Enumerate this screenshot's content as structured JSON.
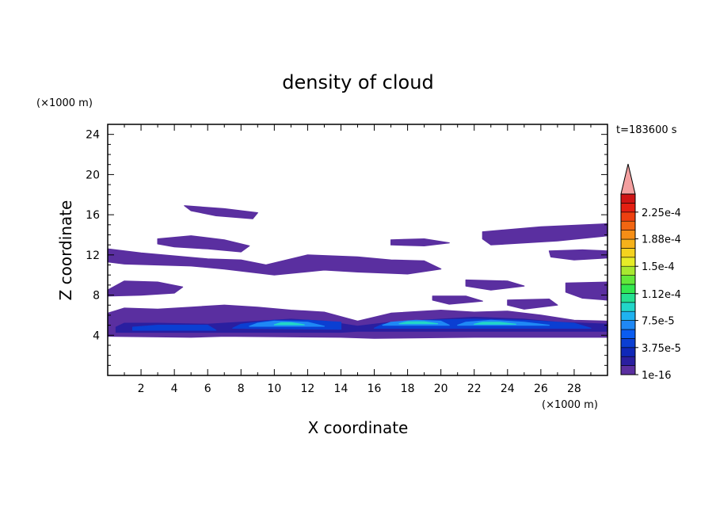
{
  "chart_data": {
    "type": "heatmap",
    "title": "density of cloud",
    "xlabel": "X coordinate",
    "ylabel": "Z coordinate",
    "x_unit": "(×1000 m)",
    "y_unit": "(×1000 m)",
    "time_label": "t=183600 s",
    "xlim": [
      0,
      30
    ],
    "ylim": [
      0,
      25
    ],
    "x_ticks": [
      2,
      4,
      6,
      8,
      10,
      12,
      14,
      16,
      18,
      20,
      22,
      24,
      26,
      28
    ],
    "y_ticks": [
      4,
      8,
      12,
      16,
      20,
      24
    ],
    "colorbar": {
      "min": 1e-16,
      "max": 0.00025,
      "tick_labels": [
        "2.25e-4",
        "1.88e-4",
        "1.5e-4",
        "1.12e-4",
        "7.5e-5",
        "3.75e-5",
        "1e-16"
      ],
      "tick_values": [
        0.000225,
        0.000188,
        0.00015,
        0.000112,
        7.5e-05,
        3.75e-05,
        1e-16
      ],
      "levels": [
        {
          "value": 1e-16,
          "color": "#5a2fa0"
        },
        {
          "value": 1.25e-05,
          "color": "#2a1fa0"
        },
        {
          "value": 2.5e-05,
          "color": "#1028b8"
        },
        {
          "value": 3.75e-05,
          "color": "#0b3fd2"
        },
        {
          "value": 5e-05,
          "color": "#0a5cf0"
        },
        {
          "value": 6.25e-05,
          "color": "#1f88f5"
        },
        {
          "value": 7.5e-05,
          "color": "#1fb2f0"
        },
        {
          "value": 8.75e-05,
          "color": "#22d6c8"
        },
        {
          "value": 0.0001,
          "color": "#25e090"
        },
        {
          "value": 0.0001125,
          "color": "#33e84f"
        },
        {
          "value": 0.000125,
          "color": "#63e83a"
        },
        {
          "value": 0.0001375,
          "color": "#a8e830"
        },
        {
          "value": 0.00015,
          "color": "#e6ec28"
        },
        {
          "value": 0.0001625,
          "color": "#f5d21f"
        },
        {
          "value": 0.000175,
          "color": "#f6b21a"
        },
        {
          "value": 0.0001875,
          "color": "#f58e16"
        },
        {
          "value": 0.0002,
          "color": "#f26612"
        },
        {
          "value": 0.0002125,
          "color": "#ee4010"
        },
        {
          "value": 0.000225,
          "color": "#e41f12"
        },
        {
          "value": 0.0002375,
          "color": "#cf1515"
        }
      ],
      "overflow_color": "#f4a0a0"
    },
    "regions": [
      {
        "level": 0,
        "points": [
          [
            0,
            3.9
          ],
          [
            5,
            3.8
          ],
          [
            7,
            3.9
          ],
          [
            14,
            3.8
          ],
          [
            16,
            3.7
          ],
          [
            22,
            3.8
          ],
          [
            30,
            3.8
          ],
          [
            30,
            5.4
          ],
          [
            28,
            5.5
          ],
          [
            26,
            6.0
          ],
          [
            24,
            6.4
          ],
          [
            22,
            6.3
          ],
          [
            20,
            6.5
          ],
          [
            17,
            6.2
          ],
          [
            15,
            5.4
          ],
          [
            13,
            6.3
          ],
          [
            11,
            6.5
          ],
          [
            9,
            6.8
          ],
          [
            7,
            7.0
          ],
          [
            5,
            6.8
          ],
          [
            3,
            6.6
          ],
          [
            1,
            6.7
          ],
          [
            0,
            6.2
          ]
        ]
      },
      {
        "level": 0,
        "points": [
          [
            0,
            8.5
          ],
          [
            1,
            9.4
          ],
          [
            3,
            9.3
          ],
          [
            4.5,
            8.8
          ],
          [
            4,
            8.2
          ],
          [
            2,
            8.0
          ],
          [
            0,
            7.9
          ]
        ]
      },
      {
        "level": 0,
        "points": [
          [
            0,
            12.6
          ],
          [
            2,
            12.2
          ],
          [
            4,
            11.9
          ],
          [
            6,
            11.6
          ],
          [
            8,
            11.5
          ],
          [
            9.5,
            11.0
          ],
          [
            12,
            12.0
          ],
          [
            15,
            11.8
          ],
          [
            17,
            11.5
          ],
          [
            19,
            11.4
          ],
          [
            20,
            10.6
          ],
          [
            18,
            10.1
          ],
          [
            15,
            10.3
          ],
          [
            13,
            10.5
          ],
          [
            10,
            10.0
          ],
          [
            7,
            10.6
          ],
          [
            5,
            10.9
          ],
          [
            3,
            11.0
          ],
          [
            1,
            11.1
          ],
          [
            0,
            11.3
          ]
        ]
      },
      {
        "level": 0,
        "points": [
          [
            3,
            13.6
          ],
          [
            5,
            13.9
          ],
          [
            7,
            13.5
          ],
          [
            8.5,
            12.9
          ],
          [
            8,
            12.3
          ],
          [
            6,
            12.6
          ],
          [
            4,
            12.8
          ],
          [
            3,
            13.1
          ]
        ]
      },
      {
        "level": 0,
        "points": [
          [
            4.6,
            16.9
          ],
          [
            7,
            16.6
          ],
          [
            9,
            16.2
          ],
          [
            8.7,
            15.6
          ],
          [
            6.5,
            15.9
          ],
          [
            5,
            16.4
          ]
        ]
      },
      {
        "level": 0,
        "points": [
          [
            17,
            13.5
          ],
          [
            19,
            13.6
          ],
          [
            20.5,
            13.2
          ],
          [
            19,
            12.9
          ],
          [
            17,
            13.0
          ]
        ]
      },
      {
        "level": 0,
        "points": [
          [
            22.5,
            14.3
          ],
          [
            26,
            14.8
          ],
          [
            30,
            15.1
          ],
          [
            30,
            13.9
          ],
          [
            27,
            13.4
          ],
          [
            23,
            13.0
          ],
          [
            22.5,
            13.6
          ]
        ]
      },
      {
        "level": 0,
        "points": [
          [
            26.5,
            12.4
          ],
          [
            28.5,
            12.5
          ],
          [
            30,
            12.4
          ],
          [
            30,
            11.7
          ],
          [
            28,
            11.5
          ],
          [
            26.6,
            11.8
          ]
        ]
      },
      {
        "level": 0,
        "points": [
          [
            21.5,
            9.5
          ],
          [
            24,
            9.4
          ],
          [
            25,
            8.9
          ],
          [
            23,
            8.5
          ],
          [
            21.5,
            8.9
          ]
        ]
      },
      {
        "level": 0,
        "points": [
          [
            27.5,
            9.2
          ],
          [
            30,
            9.3
          ],
          [
            30,
            7.5
          ],
          [
            28.5,
            7.7
          ],
          [
            27.5,
            8.3
          ]
        ]
      },
      {
        "level": 0,
        "points": [
          [
            19.5,
            7.9
          ],
          [
            21.5,
            7.9
          ],
          [
            22.5,
            7.4
          ],
          [
            20.5,
            7.1
          ],
          [
            19.5,
            7.5
          ]
        ]
      },
      {
        "level": 0,
        "points": [
          [
            24,
            7.5
          ],
          [
            26.5,
            7.6
          ],
          [
            27,
            7.0
          ],
          [
            25,
            6.6
          ],
          [
            24,
            7.0
          ]
        ]
      },
      {
        "level": 1,
        "points": [
          [
            0.5,
            4.3
          ],
          [
            14,
            4.3
          ],
          [
            15,
            4.4
          ],
          [
            30,
            4.4
          ],
          [
            30,
            5.1
          ],
          [
            27,
            5.3
          ],
          [
            25,
            5.6
          ],
          [
            22,
            5.8
          ],
          [
            20,
            5.6
          ],
          [
            17,
            5.3
          ],
          [
            15,
            4.9
          ],
          [
            13,
            5.4
          ],
          [
            11,
            5.6
          ],
          [
            8,
            5.3
          ],
          [
            6,
            5.1
          ],
          [
            3,
            5.2
          ],
          [
            1,
            5.2
          ],
          [
            0.5,
            4.8
          ]
        ]
      },
      {
        "level": 3,
        "points": [
          [
            7.5,
            4.7
          ],
          [
            14,
            4.6
          ],
          [
            14,
            5.3
          ],
          [
            12,
            5.5
          ],
          [
            10,
            5.5
          ],
          [
            8,
            5.1
          ]
        ]
      },
      {
        "level": 3,
        "points": [
          [
            16,
            4.7
          ],
          [
            29,
            4.7
          ],
          [
            28,
            5.2
          ],
          [
            25,
            5.5
          ],
          [
            22,
            5.6
          ],
          [
            19,
            5.5
          ],
          [
            16.5,
            5.1
          ]
        ]
      },
      {
        "level": 3,
        "points": [
          [
            1.5,
            4.5
          ],
          [
            6.5,
            4.5
          ],
          [
            6,
            5.0
          ],
          [
            3,
            5.0
          ],
          [
            1.5,
            4.8
          ]
        ]
      },
      {
        "level": 5,
        "points": [
          [
            8.5,
            4.9
          ],
          [
            13,
            4.9
          ],
          [
            12,
            5.3
          ],
          [
            10,
            5.4
          ],
          [
            9,
            5.2
          ]
        ]
      },
      {
        "level": 5,
        "points": [
          [
            16.5,
            5.0
          ],
          [
            20.5,
            5.0
          ],
          [
            20,
            5.4
          ],
          [
            18.5,
            5.5
          ],
          [
            17,
            5.3
          ]
        ]
      },
      {
        "level": 5,
        "points": [
          [
            21,
            5.0
          ],
          [
            26.5,
            5.0
          ],
          [
            25,
            5.3
          ],
          [
            23,
            5.5
          ],
          [
            21.5,
            5.3
          ]
        ]
      },
      {
        "level": 7,
        "points": [
          [
            17.5,
            5.15
          ],
          [
            19.8,
            5.15
          ],
          [
            19,
            5.35
          ],
          [
            18,
            5.35
          ]
        ]
      },
      {
        "level": 7,
        "points": [
          [
            22,
            5.1
          ],
          [
            24.5,
            5.1
          ],
          [
            23.5,
            5.3
          ],
          [
            22.5,
            5.3
          ]
        ]
      },
      {
        "level": 7,
        "points": [
          [
            10,
            5.05
          ],
          [
            11.8,
            5.05
          ],
          [
            11,
            5.25
          ],
          [
            10.4,
            5.25
          ]
        ]
      }
    ]
  }
}
